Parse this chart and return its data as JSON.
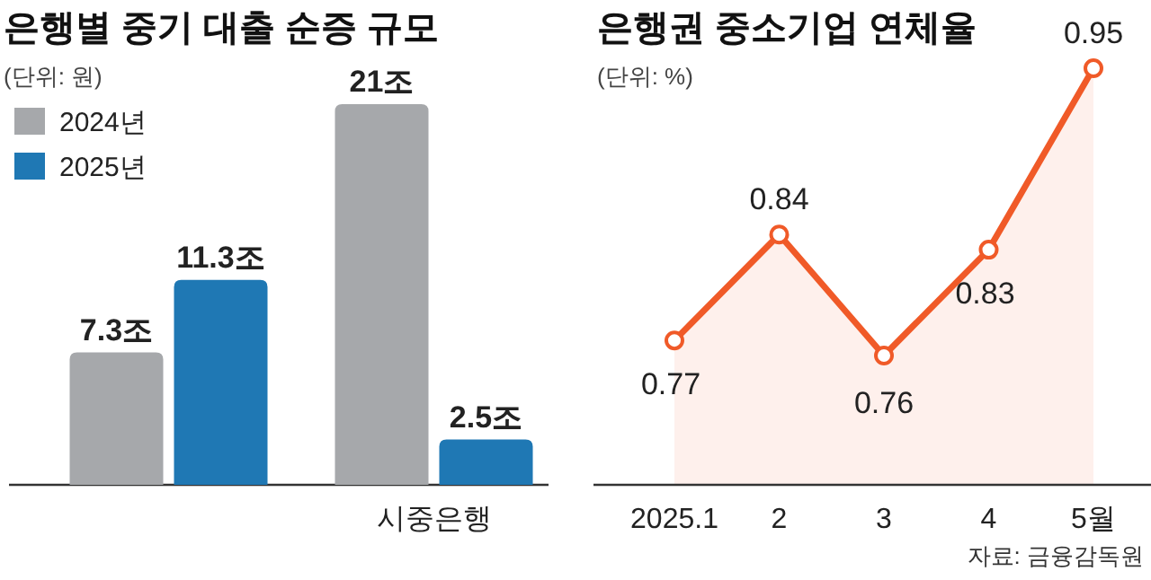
{
  "chart_data": [
    {
      "type": "bar",
      "title": "은행별 중기 대출 순증 규모",
      "subtitle": "(단위: 원)",
      "categories": [
        null,
        "시중은행"
      ],
      "legend": "top left",
      "series": [
        {
          "name": "2024년",
          "color": "#a6a8ab",
          "values": [
            7.3,
            21
          ],
          "value_labels": [
            "7.3조",
            "21조"
          ]
        },
        {
          "name": "2025년",
          "color": "#1f78b4",
          "values": [
            11.3,
            2.5
          ],
          "value_labels": [
            "11.3조",
            "2.5조"
          ]
        }
      ]
    },
    {
      "type": "area",
      "title": "은행권 중소기업 연체율",
      "subtitle": "(단위: %)",
      "categories": [
        "2025.1",
        "2",
        "3",
        "4",
        "5월"
      ],
      "marker": "circle",
      "data_labels": true,
      "series": [
        {
          "color": "#f05a28",
          "values": [
            0.77,
            0.84,
            0.76,
            0.83,
            0.95
          ]
        }
      ],
      "annotations": [
        "자료: 금융감독원"
      ]
    }
  ]
}
